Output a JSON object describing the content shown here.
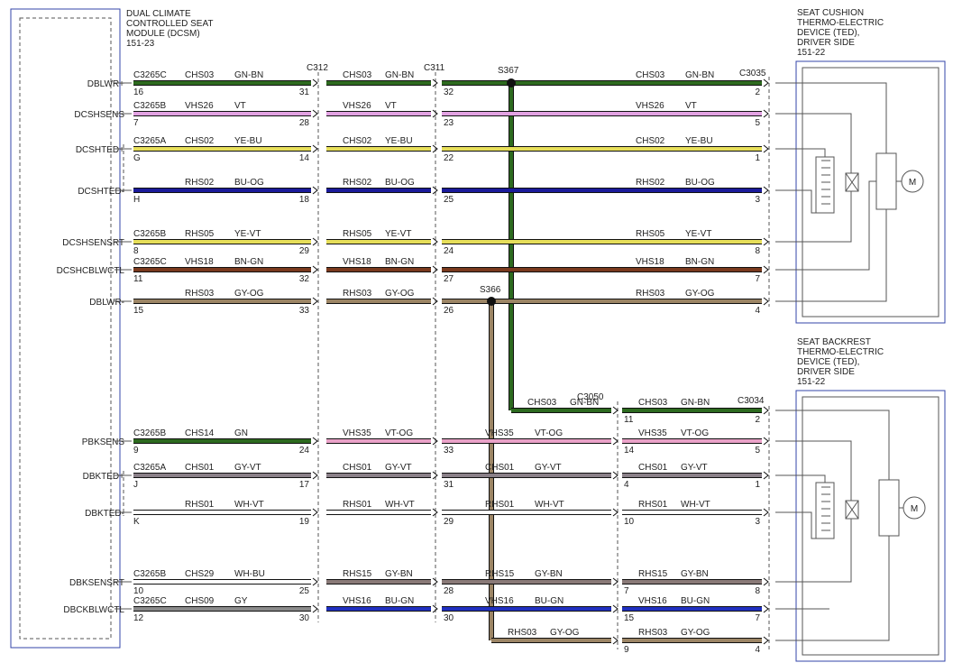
{
  "module": {
    "lines": [
      "DUAL CLIMATE",
      "CONTROLLED SEAT",
      "MODULE (DCSM)",
      "151-23"
    ]
  },
  "cushion_ted": {
    "lines": [
      "SEAT CUSHION",
      "THERMO-ELECTRIC",
      "DEVICE (TED),",
      "DRIVER SIDE",
      "151-22"
    ],
    "motor": "M"
  },
  "backrest_ted": {
    "lines": [
      "SEAT BACKREST",
      "THERMO-ELECTRIC",
      "DEVICE (TED),",
      "DRIVER SIDE",
      "151-22"
    ],
    "motor": "M"
  },
  "junctions": [
    "C312",
    "C311",
    "S367",
    "C3035",
    "C3050",
    "C3034",
    "S366"
  ],
  "rows": [
    {
      "signal": "DBLWR+",
      "connector": "C3265C",
      "pin": "16",
      "segments": [
        {
          "circuit": "CHS03",
          "code": "GN-BN",
          "color": "#2d6a1f",
          "pin": "31"
        },
        {
          "circuit": "CHS03",
          "code": "GN-BN",
          "color": "#2d6a1f",
          "pin": "32"
        },
        {
          "circuit": "CHS03",
          "code": "GN-BN",
          "color": "#2d6a1f",
          "pin": "2"
        }
      ]
    },
    {
      "signal": "DCSHSENS",
      "connector": "C3265B",
      "pin": "7",
      "segments": [
        {
          "circuit": "VHS26",
          "code": "VT",
          "color": "#e2a2e2",
          "pin": "28"
        },
        {
          "circuit": "VHS26",
          "code": "VT",
          "color": "#e2a2e2",
          "pin": "23"
        },
        {
          "circuit": "VHS26",
          "code": "VT",
          "color": "#e2a2e2",
          "pin": "5"
        }
      ]
    },
    {
      "signal": "DCSHTED+",
      "connector": "C3265A",
      "pin": "G",
      "segments": [
        {
          "circuit": "CHS02",
          "code": "YE-BU",
          "color": "#e6de5a",
          "pin": "14"
        },
        {
          "circuit": "CHS02",
          "code": "YE-BU",
          "color": "#e6de5a",
          "pin": "22"
        },
        {
          "circuit": "CHS02",
          "code": "YE-BU",
          "color": "#e6de5a",
          "pin": "1"
        }
      ]
    },
    {
      "signal": "DCSHTED-",
      "pin": "H",
      "segments": [
        {
          "circuit": "RHS02",
          "code": "BU-OG",
          "color": "#1a1a9a",
          "pin": "18"
        },
        {
          "circuit": "RHS02",
          "code": "BU-OG",
          "color": "#1a1a9a",
          "pin": "25"
        },
        {
          "circuit": "RHS02",
          "code": "BU-OG",
          "color": "#1a1a9a",
          "pin": "3"
        }
      ]
    },
    {
      "signal": "DCSHSENSRT",
      "connector": "C3265B",
      "pin": "8",
      "segments": [
        {
          "circuit": "RHS05",
          "code": "YE-VT",
          "color": "#e6de5a",
          "pin": "29"
        },
        {
          "circuit": "RHS05",
          "code": "YE-VT",
          "color": "#e6de5a",
          "pin": "24"
        },
        {
          "circuit": "RHS05",
          "code": "YE-VT",
          "color": "#e6de5a",
          "pin": "8"
        }
      ]
    },
    {
      "signal": "DCSHCBLWCTL",
      "connector": "C3265C",
      "pin": "11",
      "segments": [
        {
          "circuit": "VHS18",
          "code": "BN-GN",
          "color": "#7a3a1e",
          "pin": "32"
        },
        {
          "circuit": "VHS18",
          "code": "BN-GN",
          "color": "#7a3a1e",
          "pin": "27"
        },
        {
          "circuit": "VHS18",
          "code": "BN-GN",
          "color": "#7a3a1e",
          "pin": "7"
        }
      ]
    },
    {
      "signal": "DBLWR-",
      "pin": "15",
      "segments": [
        {
          "circuit": "RHS03",
          "code": "GY-OG",
          "color": "#9c8565",
          "pin": "33"
        },
        {
          "circuit": "RHS03",
          "code": "GY-OG",
          "color": "#9c8565",
          "pin": "26"
        },
        {
          "circuit": "RHS03",
          "code": "GY-OG",
          "color": "#9c8565",
          "pin": "4"
        }
      ]
    },
    {
      "segments": [
        {
          "circuit": "CHS03",
          "code": "GN-BN",
          "color": "#2d6a1f",
          "pin": "11"
        },
        {
          "circuit": "CHS03",
          "code": "GN-BN",
          "color": "#2d6a1f",
          "pin": "2"
        }
      ]
    },
    {
      "signal": "PBKSENS",
      "connector": "C3265B",
      "pin": "9",
      "segments": [
        {
          "circuit": "CHS14",
          "code": "GN",
          "color": "#2d6a1f",
          "pin": "24"
        },
        {
          "circuit": "VHS35",
          "code": "VT-OG",
          "color": "#eaa2c8",
          "pin": "33"
        },
        {
          "circuit": "VHS35",
          "code": "VT-OG",
          "color": "#eaa2c8",
          "pin": "14"
        },
        {
          "circuit": "VHS35",
          "code": "VT-OG",
          "color": "#eaa2c8",
          "pin": "5"
        }
      ]
    },
    {
      "signal": "DBKTED+",
      "connector": "C3265A",
      "pin": "J",
      "segments": [
        {
          "circuit": "CHS01",
          "code": "GY-VT",
          "color": "#8a8088",
          "pin": "17"
        },
        {
          "circuit": "CHS01",
          "code": "GY-VT",
          "color": "#8a8088",
          "pin": "31"
        },
        {
          "circuit": "CHS01",
          "code": "GY-VT",
          "color": "#8a8088",
          "pin": "4"
        },
        {
          "circuit": "CHS01",
          "code": "GY-VT",
          "color": "#8a8088",
          "pin": "1"
        }
      ]
    },
    {
      "signal": "DBKTED-",
      "pin": "K",
      "segments": [
        {
          "circuit": "RHS01",
          "code": "WH-VT",
          "color": "#ffffff",
          "pin": "19"
        },
        {
          "circuit": "RHS01",
          "code": "WH-VT",
          "color": "#ffffff",
          "pin": "29"
        },
        {
          "circuit": "RHS01",
          "code": "WH-VT",
          "color": "#ffffff",
          "pin": "10"
        },
        {
          "circuit": "RHS01",
          "code": "WH-VT",
          "color": "#ffffff",
          "pin": "3"
        }
      ]
    },
    {
      "signal": "DBKSENSRT",
      "connector": "C3265B",
      "pin": "10",
      "segments": [
        {
          "circuit": "CHS29",
          "code": "WH-BU",
          "color": "#ffffff",
          "pin": "25"
        },
        {
          "circuit": "RHS15",
          "code": "GY-BN",
          "color": "#8a7a78",
          "pin": "28"
        },
        {
          "circuit": "RHS15",
          "code": "GY-BN",
          "color": "#8a7a78",
          "pin": "7"
        },
        {
          "circuit": "RHS15",
          "code": "GY-BN",
          "color": "#8a7a78",
          "pin": "8"
        }
      ]
    },
    {
      "signal": "DBCKBLWCTL",
      "connector": "C3265C",
      "pin": "12",
      "segments": [
        {
          "circuit": "CHS09",
          "code": "GY",
          "color": "#8a8a8a",
          "pin": "30"
        },
        {
          "circuit": "VHS16",
          "code": "BU-GN",
          "color": "#2030c0",
          "pin": "30"
        },
        {
          "circuit": "VHS16",
          "code": "BU-GN",
          "color": "#2030c0",
          "pin": "15"
        },
        {
          "circuit": "VHS16",
          "code": "BU-GN",
          "color": "#2030c0",
          "pin": "7"
        }
      ]
    },
    {
      "segments": [
        {
          "circuit": "RHS03",
          "code": "GY-OG",
          "color": "#9c8565",
          "pin": "9"
        },
        {
          "circuit": "RHS03",
          "code": "GY-OG",
          "color": "#9c8565",
          "pin": "4"
        }
      ]
    }
  ]
}
